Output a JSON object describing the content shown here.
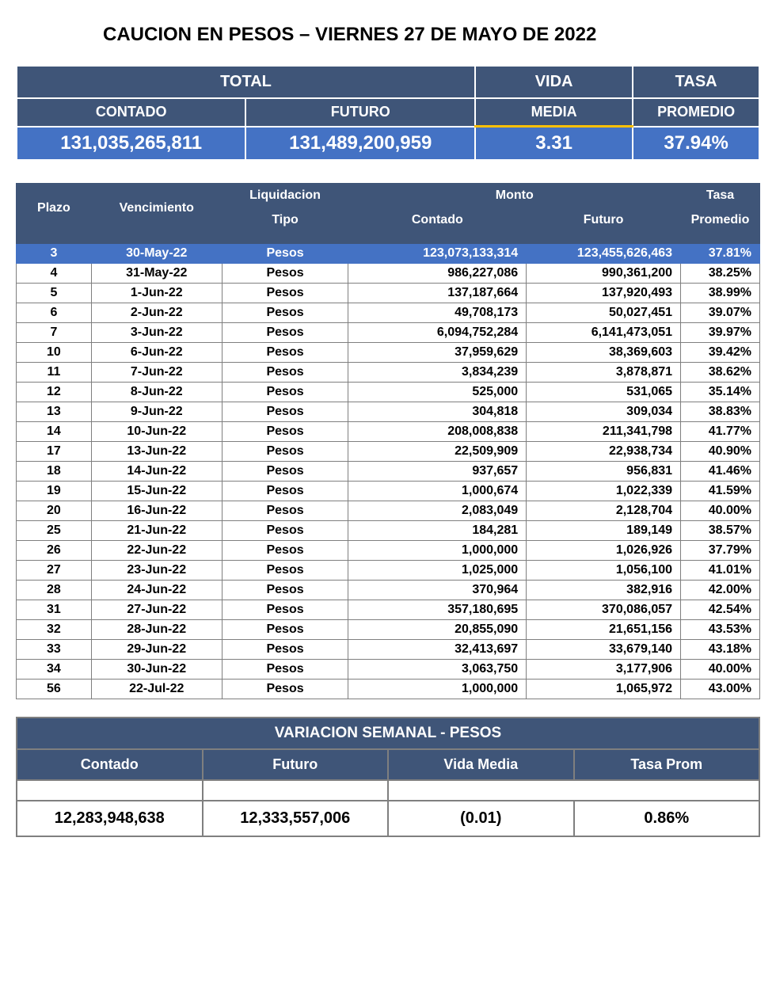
{
  "title": "CAUCION EN PESOS – VIERNES  27 DE MAYO DE 2022",
  "summary": {
    "labels": {
      "total": "TOTAL",
      "vida": "VIDA",
      "tasa": "TASA",
      "contado": "CONTADO",
      "futuro": "FUTURO",
      "media": "MEDIA",
      "promedio": "PROMEDIO"
    },
    "values": {
      "contado": "131,035,265,811",
      "futuro": "131,489,200,959",
      "media": "3.31",
      "promedio": "37.94%"
    },
    "colors": {
      "header_bg": "#3f5578",
      "value_bg": "#4472c4",
      "accent_border": "#ffc000",
      "text": "#ffffff"
    }
  },
  "detail": {
    "headers": {
      "plazo": "Plazo",
      "vencimiento": "Vencimiento",
      "liquidacion": "Liquidacion",
      "tipo": "Tipo",
      "monto": "Monto",
      "contado": "Contado",
      "futuro": "Futuro",
      "tasa": "Tasa",
      "promedio": "Promedio"
    },
    "selected_row_index": 0,
    "colors": {
      "header_bg": "#3f5578",
      "header_text": "#ffffff",
      "row_bg": "#ffffff",
      "row_text": "#000000",
      "selected_bg": "#4472c4",
      "selected_text": "#ffffff",
      "border": "#7f7f7f"
    },
    "rows": [
      {
        "plazo": "3",
        "venc": "30-May-22",
        "tipo": "Pesos",
        "contado": "123,073,133,314",
        "futuro": "123,455,626,463",
        "tasa": "37.81%"
      },
      {
        "plazo": "4",
        "venc": "31-May-22",
        "tipo": "Pesos",
        "contado": "986,227,086",
        "futuro": "990,361,200",
        "tasa": "38.25%"
      },
      {
        "plazo": "5",
        "venc": "1-Jun-22",
        "tipo": "Pesos",
        "contado": "137,187,664",
        "futuro": "137,920,493",
        "tasa": "38.99%"
      },
      {
        "plazo": "6",
        "venc": "2-Jun-22",
        "tipo": "Pesos",
        "contado": "49,708,173",
        "futuro": "50,027,451",
        "tasa": "39.07%"
      },
      {
        "plazo": "7",
        "venc": "3-Jun-22",
        "tipo": "Pesos",
        "contado": "6,094,752,284",
        "futuro": "6,141,473,051",
        "tasa": "39.97%"
      },
      {
        "plazo": "10",
        "venc": "6-Jun-22",
        "tipo": "Pesos",
        "contado": "37,959,629",
        "futuro": "38,369,603",
        "tasa": "39.42%"
      },
      {
        "plazo": "11",
        "venc": "7-Jun-22",
        "tipo": "Pesos",
        "contado": "3,834,239",
        "futuro": "3,878,871",
        "tasa": "38.62%"
      },
      {
        "plazo": "12",
        "venc": "8-Jun-22",
        "tipo": "Pesos",
        "contado": "525,000",
        "futuro": "531,065",
        "tasa": "35.14%"
      },
      {
        "plazo": "13",
        "venc": "9-Jun-22",
        "tipo": "Pesos",
        "contado": "304,818",
        "futuro": "309,034",
        "tasa": "38.83%"
      },
      {
        "plazo": "14",
        "venc": "10-Jun-22",
        "tipo": "Pesos",
        "contado": "208,008,838",
        "futuro": "211,341,798",
        "tasa": "41.77%"
      },
      {
        "plazo": "17",
        "venc": "13-Jun-22",
        "tipo": "Pesos",
        "contado": "22,509,909",
        "futuro": "22,938,734",
        "tasa": "40.90%"
      },
      {
        "plazo": "18",
        "venc": "14-Jun-22",
        "tipo": "Pesos",
        "contado": "937,657",
        "futuro": "956,831",
        "tasa": "41.46%"
      },
      {
        "plazo": "19",
        "venc": "15-Jun-22",
        "tipo": "Pesos",
        "contado": "1,000,674",
        "futuro": "1,022,339",
        "tasa": "41.59%"
      },
      {
        "plazo": "20",
        "venc": "16-Jun-22",
        "tipo": "Pesos",
        "contado": "2,083,049",
        "futuro": "2,128,704",
        "tasa": "40.00%"
      },
      {
        "plazo": "25",
        "venc": "21-Jun-22",
        "tipo": "Pesos",
        "contado": "184,281",
        "futuro": "189,149",
        "tasa": "38.57%"
      },
      {
        "plazo": "26",
        "venc": "22-Jun-22",
        "tipo": "Pesos",
        "contado": "1,000,000",
        "futuro": "1,026,926",
        "tasa": "37.79%"
      },
      {
        "plazo": "27",
        "venc": "23-Jun-22",
        "tipo": "Pesos",
        "contado": "1,025,000",
        "futuro": "1,056,100",
        "tasa": "41.01%"
      },
      {
        "plazo": "28",
        "venc": "24-Jun-22",
        "tipo": "Pesos",
        "contado": "370,964",
        "futuro": "382,916",
        "tasa": "42.00%"
      },
      {
        "plazo": "31",
        "venc": "27-Jun-22",
        "tipo": "Pesos",
        "contado": "357,180,695",
        "futuro": "370,086,057",
        "tasa": "42.54%"
      },
      {
        "plazo": "32",
        "venc": "28-Jun-22",
        "tipo": "Pesos",
        "contado": "20,855,090",
        "futuro": "21,651,156",
        "tasa": "43.53%"
      },
      {
        "plazo": "33",
        "venc": "29-Jun-22",
        "tipo": "Pesos",
        "contado": "32,413,697",
        "futuro": "33,679,140",
        "tasa": "43.18%"
      },
      {
        "plazo": "34",
        "venc": "30-Jun-22",
        "tipo": "Pesos",
        "contado": "3,063,750",
        "futuro": "3,177,906",
        "tasa": "40.00%"
      },
      {
        "plazo": "56",
        "venc": "22-Jul-22",
        "tipo": "Pesos",
        "contado": "1,000,000",
        "futuro": "1,065,972",
        "tasa": "43.00%"
      }
    ]
  },
  "variacion": {
    "title": "VARIACION SEMANAL - PESOS",
    "headers": {
      "contado": "Contado",
      "futuro": "Futuro",
      "vida_media": "Vida Media",
      "tasa_prom": "Tasa Prom"
    },
    "values": {
      "contado": "12,283,948,638",
      "futuro": "12,333,557,006",
      "vida_media": "(0.01)",
      "tasa_prom": "0.86%"
    },
    "colors": {
      "header_bg": "#3f5578",
      "header_text": "#ffffff",
      "value_bg": "#ffffff",
      "value_text": "#000000",
      "border": "#7f7f7f"
    }
  }
}
